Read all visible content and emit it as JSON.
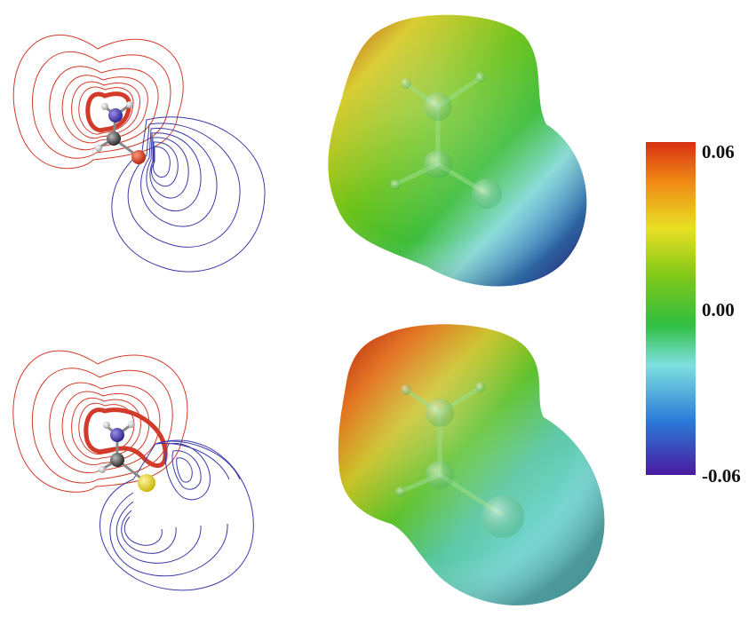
{
  "colorbar": {
    "max_label": "0.06",
    "mid_label": "0.00",
    "min_label": "-0.06",
    "stops": [
      "#4a1aa0",
      "#2a7ad8",
      "#7ee0e0",
      "#2fbf40",
      "#82c818",
      "#e8e024",
      "#f08a14",
      "#d83012"
    ]
  },
  "contour_colors": {
    "positive": "#d23a2a",
    "negative": "#3a3aa8"
  },
  "atom_colors": {
    "carbon": "#3a3a3a",
    "nitrogen": "#3a2ca8",
    "oxygen": "#d43018",
    "sulfur": "#e8d810",
    "hydrogen": "#d8d8d8"
  },
  "panels": [
    {
      "molecule": "formamide",
      "heteroatom": "oxygen"
    },
    {
      "molecule": "thioformamide",
      "heteroatom": "sulfur"
    }
  ]
}
